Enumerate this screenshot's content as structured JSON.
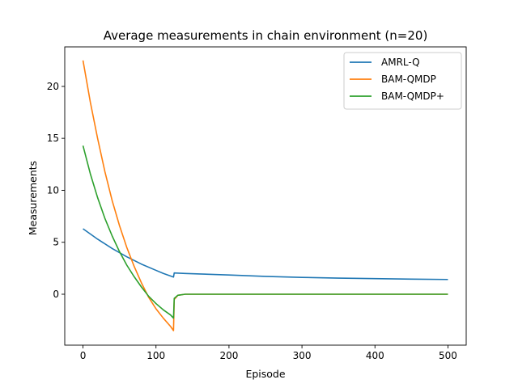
{
  "chart_data": {
    "type": "line",
    "title": "Average measurements in chain environment (n=20)",
    "xlabel": "Episode",
    "ylabel": "Measurements",
    "xlim": [
      -25,
      525
    ],
    "ylim": [
      -4.9,
      23.8
    ],
    "xticks": [
      0,
      100,
      200,
      300,
      400,
      500
    ],
    "yticks": [
      0,
      5,
      10,
      15,
      20
    ],
    "grid": false,
    "legend_position": "top-right",
    "series": [
      {
        "name": "AMRL-Q",
        "color": "#1f77b4",
        "x": [
          0,
          20,
          40,
          60,
          80,
          100,
          110,
          124,
          125,
          140,
          160,
          200,
          250,
          300,
          350,
          400,
          450,
          500
        ],
        "y": [
          6.3,
          5.3,
          4.4,
          3.6,
          2.9,
          2.3,
          2.0,
          1.65,
          2.05,
          2.0,
          1.95,
          1.85,
          1.72,
          1.62,
          1.55,
          1.5,
          1.45,
          1.42
        ]
      },
      {
        "name": "BAM-QMDP",
        "color": "#ff7f0e",
        "x": [
          0,
          10,
          20,
          30,
          40,
          50,
          60,
          70,
          80,
          90,
          100,
          110,
          120,
          124,
          125,
          130,
          140,
          160,
          200,
          300,
          400,
          500
        ],
        "y": [
          22.5,
          18.5,
          15.0,
          11.8,
          9.0,
          6.6,
          4.5,
          2.7,
          1.1,
          -0.3,
          -1.4,
          -2.3,
          -3.1,
          -3.5,
          -0.5,
          -0.1,
          0.0,
          0.0,
          0.0,
          0.0,
          0.0,
          0.0
        ]
      },
      {
        "name": "BAM-QMDP+",
        "color": "#2ca02c",
        "x": [
          0,
          10,
          20,
          30,
          40,
          50,
          60,
          70,
          80,
          90,
          100,
          110,
          120,
          124,
          125,
          130,
          140,
          160,
          200,
          300,
          400,
          500
        ],
        "y": [
          14.3,
          11.6,
          9.3,
          7.3,
          5.6,
          4.1,
          2.8,
          1.7,
          0.7,
          -0.2,
          -0.9,
          -1.5,
          -2.0,
          -2.3,
          -0.4,
          -0.1,
          0.0,
          0.0,
          0.0,
          0.0,
          0.0,
          0.0
        ]
      }
    ]
  }
}
